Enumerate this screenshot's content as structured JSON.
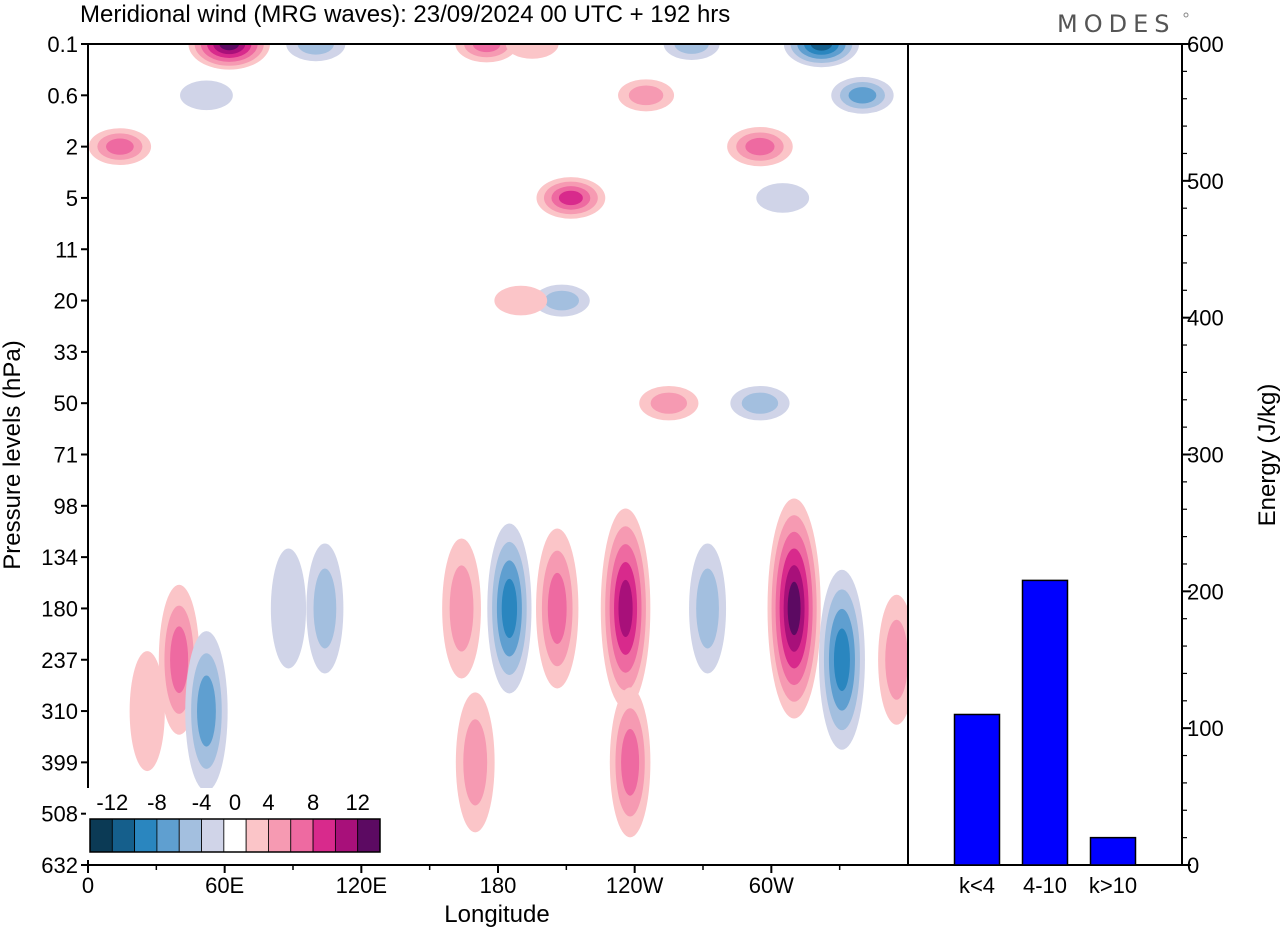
{
  "title": "Meridional wind (MRG waves):  23/09/2024  00 UTC  + 192 hrs",
  "brand": "MODES",
  "chart_data": [
    {
      "type": "heatmap",
      "title": "Meridional wind (MRG waves):  23/09/2024  00 UTC  + 192 hrs",
      "xlabel": "Longitude",
      "ylabel": "Pressure levels (hPa)",
      "x_ticks": [
        "0",
        "60E",
        "120E",
        "180",
        "120W",
        "60W"
      ],
      "x_tick_degrees": [
        0,
        60,
        120,
        180,
        240,
        300
      ],
      "xlim": [
        0,
        360
      ],
      "y_ticks": [
        "0.1",
        "0.6",
        "2",
        "5",
        "11",
        "20",
        "33",
        "50",
        "71",
        "98",
        "134",
        "180",
        "237",
        "310",
        "399",
        "508",
        "632"
      ],
      "colorbar": {
        "labels": [
          "-12",
          "-8",
          "-4",
          "0",
          "4",
          "8",
          "12"
        ],
        "levels": [
          -14,
          -12,
          -10,
          -8,
          -6,
          -4,
          -2,
          2,
          4,
          6,
          8,
          10,
          12,
          14
        ],
        "colors": [
          "#0b3a55",
          "#155f8c",
          "#2a86bf",
          "#5f9fd0",
          "#a3bfdf",
          "#d0d4e8",
          "#ffffff",
          "#fbc5c8",
          "#f69ab2",
          "#ee6aa1",
          "#d82a8c",
          "#a8107a",
          "#5c0a62"
        ]
      },
      "cells": [
        {
          "lon": 62,
          "level": "0.1",
          "value": 13
        },
        {
          "lon": 100,
          "level": "0.1",
          "value": -6
        },
        {
          "lon": 175,
          "level": "0.1",
          "value": 7
        },
        {
          "lon": 195,
          "level": "0.1",
          "value": 4
        },
        {
          "lon": 265,
          "level": "0.1",
          "value": -5
        },
        {
          "lon": 322,
          "level": "0.1",
          "value": -11
        },
        {
          "lon": 245,
          "level": "0.6",
          "value": 5
        },
        {
          "lon": 340,
          "level": "0.6",
          "value": -7
        },
        {
          "lon": 52,
          "level": "0.6",
          "value": -4
        },
        {
          "lon": 295,
          "level": "2",
          "value": 8
        },
        {
          "lon": 14,
          "level": "2",
          "value": 7
        },
        {
          "lon": 212,
          "level": "5",
          "value": 9
        },
        {
          "lon": 305,
          "level": "5",
          "value": -4
        },
        {
          "lon": 208,
          "level": "20",
          "value": -5
        },
        {
          "lon": 190,
          "level": "20",
          "value": 4
        },
        {
          "lon": 255,
          "level": "50",
          "value": 6
        },
        {
          "lon": 295,
          "level": "50",
          "value": -6
        },
        {
          "lon": 40,
          "level": "237",
          "value": 7
        },
        {
          "lon": 52,
          "level": "310",
          "value": -8
        },
        {
          "lon": 26,
          "level": "310",
          "value": 4
        },
        {
          "lon": 88,
          "level": "180",
          "value": -4
        },
        {
          "lon": 104,
          "level": "180",
          "value": -5
        },
        {
          "lon": 164,
          "level": "180",
          "value": 6
        },
        {
          "lon": 185,
          "level": "180",
          "value": -9
        },
        {
          "lon": 206,
          "level": "180",
          "value": 8
        },
        {
          "lon": 236,
          "level": "180",
          "value": 12
        },
        {
          "lon": 272,
          "level": "180",
          "value": -5
        },
        {
          "lon": 310,
          "level": "180",
          "value": 14
        },
        {
          "lon": 331,
          "level": "237",
          "value": -10
        },
        {
          "lon": 355,
          "level": "237",
          "value": 5
        },
        {
          "lon": 170,
          "level": "399",
          "value": 6
        },
        {
          "lon": 238,
          "level": "399",
          "value": 7
        }
      ]
    },
    {
      "type": "bar",
      "categories": [
        "k<4",
        "4-10",
        "k>10"
      ],
      "values": [
        110,
        208,
        20
      ],
      "ylabel": "Energy (J/kg)",
      "ylim": [
        0,
        600
      ],
      "y_ticks": [
        "0",
        "100",
        "200",
        "300",
        "400",
        "500",
        "600"
      ],
      "bar_color": "#0000ff"
    }
  ]
}
